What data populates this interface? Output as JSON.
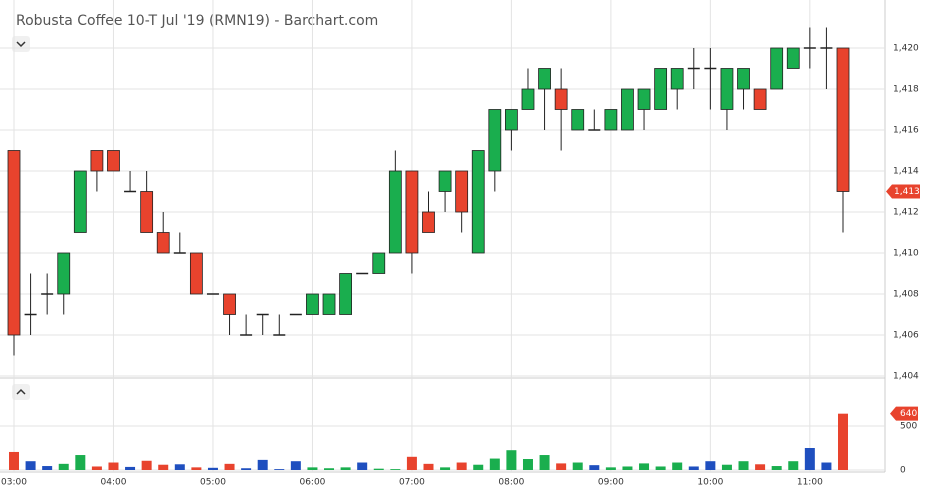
{
  "chart_data": {
    "type": "candlestick",
    "title": "Robusta Coffee 10-T Jul '19 (RMN19) - Barchart.com",
    "categories": [
      "03:00",
      null,
      null,
      null,
      null,
      null,
      "04:00",
      null,
      null,
      null,
      null,
      null,
      "05:00",
      null,
      null,
      null,
      null,
      null,
      "06:00",
      null,
      null,
      null,
      null,
      null,
      "07:00",
      null,
      null,
      null,
      null,
      null,
      "08:00",
      null,
      null,
      null,
      null,
      null,
      "09:00",
      null,
      null,
      null,
      null,
      null,
      "10:00",
      null,
      null,
      null,
      null,
      null,
      "11:00",
      null,
      null
    ],
    "open": [
      1415,
      1407,
      1408,
      1408,
      1411,
      1415,
      1415,
      1413,
      1413,
      1411,
      1410,
      1410,
      1408,
      1408,
      1406,
      1407,
      1406,
      1407,
      1407,
      1407,
      1407,
      1409,
      1409,
      1410,
      1414,
      1412,
      1413,
      1414,
      1410,
      1414,
      1416,
      1417,
      1418,
      1418,
      1416,
      1416,
      1416,
      1416,
      1417,
      1417,
      1418,
      1419,
      1419,
      1417,
      1418,
      1418,
      1418,
      1419,
      1420,
      1420,
      1420
    ],
    "high": [
      1415,
      1409,
      1409,
      1410,
      1414,
      1415,
      1415,
      1414,
      1414,
      1412,
      1411,
      1410,
      1408,
      1408,
      1407,
      1407,
      1407,
      1407,
      1408,
      1408,
      1409,
      1409,
      1410,
      1415,
      1414,
      1413,
      1414,
      1414,
      1415,
      1417,
      1417,
      1419,
      1419,
      1419,
      1417,
      1417,
      1417,
      1418,
      1418,
      1419,
      1419,
      1420,
      1420,
      1419,
      1419,
      1418,
      1420,
      1420,
      1421,
      1421,
      1420
    ],
    "low": [
      1405,
      1406,
      1407,
      1407,
      1411,
      1413,
      1414,
      1413,
      1411,
      1410,
      1410,
      1408,
      1408,
      1406,
      1406,
      1406,
      1406,
      1407,
      1407,
      1407,
      1407,
      1409,
      1409,
      1410,
      1409,
      1411,
      1412,
      1411,
      1410,
      1413,
      1415,
      1417,
      1416,
      1415,
      1416,
      1416,
      1416,
      1416,
      1416,
      1417,
      1417,
      1418,
      1417,
      1416,
      1417,
      1417,
      1418,
      1419,
      1419,
      1418,
      1411
    ],
    "close": [
      1406,
      1407,
      1408,
      1410,
      1414,
      1414,
      1414,
      1413,
      1411,
      1410,
      1410,
      1408,
      1408,
      1407,
      1406,
      1407,
      1406,
      1407,
      1408,
      1408,
      1409,
      1409,
      1410,
      1414,
      1410,
      1411,
      1414,
      1412,
      1415,
      1417,
      1417,
      1418,
      1419,
      1417,
      1417,
      1416,
      1417,
      1418,
      1418,
      1419,
      1419,
      1419,
      1419,
      1419,
      1419,
      1417,
      1420,
      1420,
      1420,
      1420,
      1413
    ],
    "up_color": "#1aae4e",
    "down_color": "#e8432d",
    "flat_color": "#222222",
    "ylim": [
      1404,
      1422
    ],
    "yticks": [
      {
        "value": 1404,
        "label": "1,404"
      },
      {
        "value": 1406,
        "label": "1,406"
      },
      {
        "value": 1408,
        "label": "1,408"
      },
      {
        "value": 1410,
        "label": "1,410"
      },
      {
        "value": 1412,
        "label": "1,412"
      },
      {
        "value": 1414,
        "label": "1,414"
      },
      {
        "value": 1416,
        "label": "1,416"
      },
      {
        "value": 1418,
        "label": "1,418"
      },
      {
        "value": 1420,
        "label": "1,420"
      }
    ],
    "last_price": {
      "value": 1413,
      "label": "1,413"
    },
    "volume": [
      205,
      100,
      45,
      70,
      170,
      40,
      85,
      35,
      105,
      60,
      65,
      30,
      25,
      70,
      20,
      115,
      10,
      100,
      30,
      20,
      30,
      85,
      15,
      10,
      150,
      70,
      30,
      85,
      60,
      130,
      225,
      125,
      170,
      75,
      85,
      55,
      30,
      40,
      75,
      40,
      85,
      40,
      100,
      60,
      100,
      65,
      45,
      100,
      250,
      85,
      640
    ],
    "volume_flat_color": "#1f4fbf",
    "volume_ylim": [
      0,
      1000
    ],
    "volume_yticks": [
      0,
      500
    ],
    "grid": true
  }
}
